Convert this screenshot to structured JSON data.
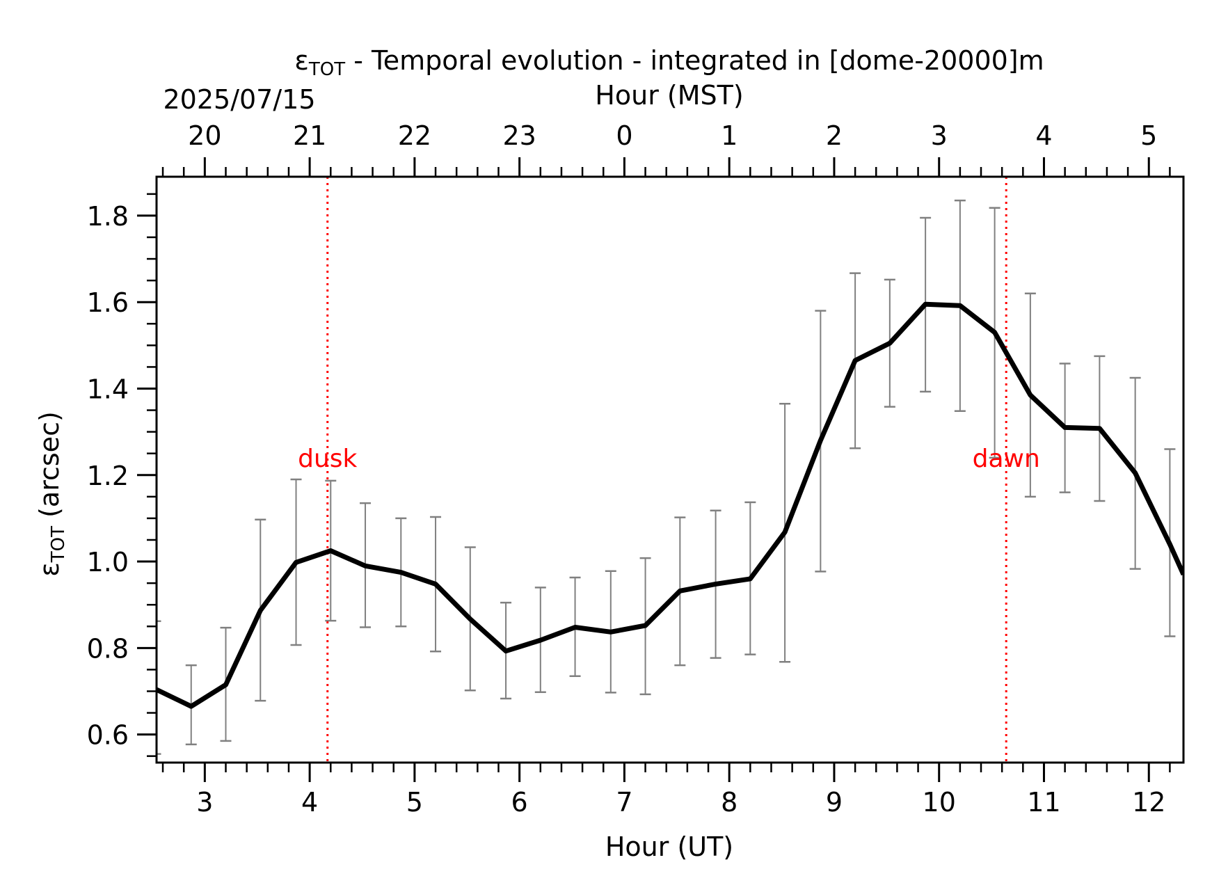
{
  "chart_data": {
    "type": "line",
    "title": "ε",
    "title_sub": "TOT",
    "title_rest": " - Temporal evolution - integrated in [dome-20000]m",
    "date_label": "2025/07/15",
    "xlabel": "Hour (UT)",
    "top_xlabel": "Hour (MST)",
    "ylabel_symbol": "ε",
    "ylabel_sub": "TOT",
    "ylabel_rest": " (arcsec)",
    "xlim": [
      2.54,
      12.33
    ],
    "ylim": [
      0.535,
      1.89
    ],
    "x_ticks": [
      3,
      4,
      5,
      6,
      7,
      8,
      9,
      10,
      11,
      12
    ],
    "x_tick_labels": [
      "3",
      "4",
      "5",
      "6",
      "7",
      "8",
      "9",
      "10",
      "11",
      "12"
    ],
    "top_ticks_ut": [
      3,
      4,
      5,
      6,
      7,
      8,
      9,
      10,
      11,
      12
    ],
    "top_tick_labels": [
      "20",
      "21",
      "22",
      "23",
      "0",
      "1",
      "2",
      "3",
      "4",
      "5"
    ],
    "y_ticks": [
      0.6,
      0.8,
      1.0,
      1.2,
      1.4,
      1.6,
      1.8
    ],
    "y_tick_labels": [
      "0.6",
      "0.8",
      "1.0",
      "1.2",
      "1.4",
      "1.6",
      "1.8"
    ],
    "series": [
      {
        "color": "#000000",
        "x": [
          2.53,
          2.87,
          3.2,
          3.53,
          3.87,
          4.2,
          4.53,
          4.87,
          5.2,
          5.53,
          5.87,
          6.2,
          6.53,
          6.87,
          7.2,
          7.53,
          7.87,
          8.2,
          8.53,
          8.87,
          9.2,
          9.53,
          9.87,
          10.2,
          10.53,
          10.87,
          11.2,
          11.53,
          11.87,
          12.2,
          12.33
        ],
        "y": [
          0.705,
          0.665,
          0.715,
          0.887,
          0.998,
          1.025,
          0.99,
          0.975,
          0.948,
          0.867,
          0.793,
          0.818,
          0.848,
          0.837,
          0.852,
          0.932,
          0.948,
          0.96,
          1.068,
          1.28,
          1.465,
          1.505,
          1.595,
          1.592,
          1.53,
          1.385,
          1.31,
          1.308,
          1.205,
          1.04,
          0.97
        ],
        "err_low": [
          0.555,
          0.577,
          0.585,
          0.678,
          0.807,
          0.863,
          0.848,
          0.85,
          0.792,
          0.702,
          0.683,
          0.698,
          0.735,
          0.697,
          0.693,
          0.76,
          0.777,
          0.785,
          0.768,
          0.977,
          1.262,
          1.358,
          1.393,
          1.348,
          1.24,
          1.15,
          1.16,
          1.14,
          0.983,
          0.827,
          null
        ],
        "err_high": [
          0.862,
          0.76,
          0.847,
          1.097,
          1.19,
          1.187,
          1.135,
          1.1,
          1.103,
          1.033,
          0.905,
          0.94,
          0.963,
          0.978,
          1.008,
          1.102,
          1.118,
          1.137,
          1.365,
          1.58,
          1.667,
          1.652,
          1.795,
          1.835,
          1.818,
          1.62,
          1.458,
          1.475,
          1.425,
          1.26,
          null
        ],
        "err_color": "#808080"
      }
    ],
    "vlines": [
      {
        "x": 4.17,
        "label": "dusk",
        "color": "#ff0000"
      },
      {
        "x": 10.64,
        "label": "dawn",
        "color": "#ff0000"
      }
    ],
    "annotation_y": 1.2,
    "grid": false
  }
}
